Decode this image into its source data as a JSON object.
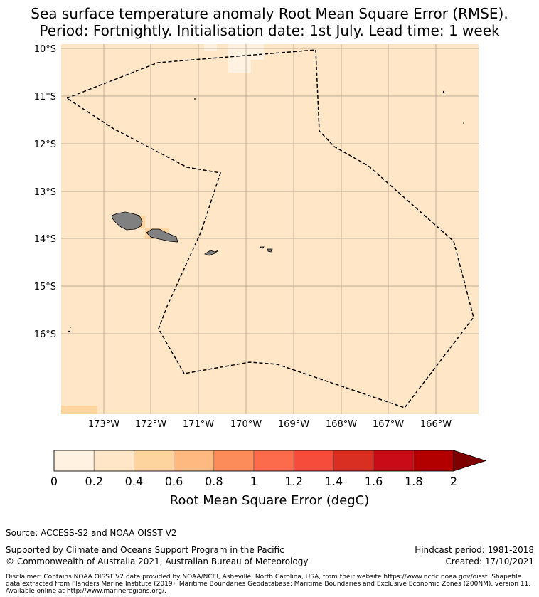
{
  "title": {
    "line1": "Sea surface temperature anomaly Root Mean Square Error (RMSE).",
    "line2": "Period: Fortnightly. Initialisation date: 1st July. Lead time: 1 week"
  },
  "map": {
    "lat_labels": [
      "10°S",
      "11°S",
      "12°S",
      "13°S",
      "14°S",
      "15°S",
      "16°S"
    ],
    "lon_labels": [
      "173°W",
      "172°W",
      "171°W",
      "170°W",
      "169°W",
      "168°W",
      "167°W",
      "166°W"
    ],
    "base_color": "#fee6c6",
    "land_color": "#808080",
    "eez_boundary_style": "dashed"
  },
  "colorbar": {
    "ticks": [
      "0",
      "0.2",
      "0.4",
      "0.6",
      "0.8",
      "1",
      "1.2",
      "1.4",
      "1.6",
      "1.8",
      "2"
    ],
    "colors": [
      "#fff2e1",
      "#fee6c6",
      "#fdd49e",
      "#fdb97f",
      "#fc8c59",
      "#fc6b4b",
      "#f64c3c",
      "#d92f22",
      "#c90b18",
      "#b20000"
    ],
    "extend_color": "#7f0000",
    "label": "Root Mean Square Error (degC)"
  },
  "footer": {
    "source": "Source: ACCESS-S2 and NOAA OISST V2",
    "supported": "Supported by Climate and Oceans Support Program in the Pacific",
    "copyright": "© Commonwealth of Australia 2021, Australian Bureau of Meteorology",
    "hindcast": "Hindcast period: 1981-2018",
    "created": "Created: 17/10/2021",
    "disclaimer": "Disclaimer: Contains NOAA OISST V2 data provided by NOAA/NCEI, Asheville, North Carolina, USA, from their website https://www.ncdc.noaa.gov/oisst. Shapefile data extracted from Flanders Marine Institute (2019), Maritime Boundaries Geodatabase: Maritime Boundaries and Exclusive Economic Zones (200NM), version 11. Available online at http://www.marineregions.org/."
  }
}
